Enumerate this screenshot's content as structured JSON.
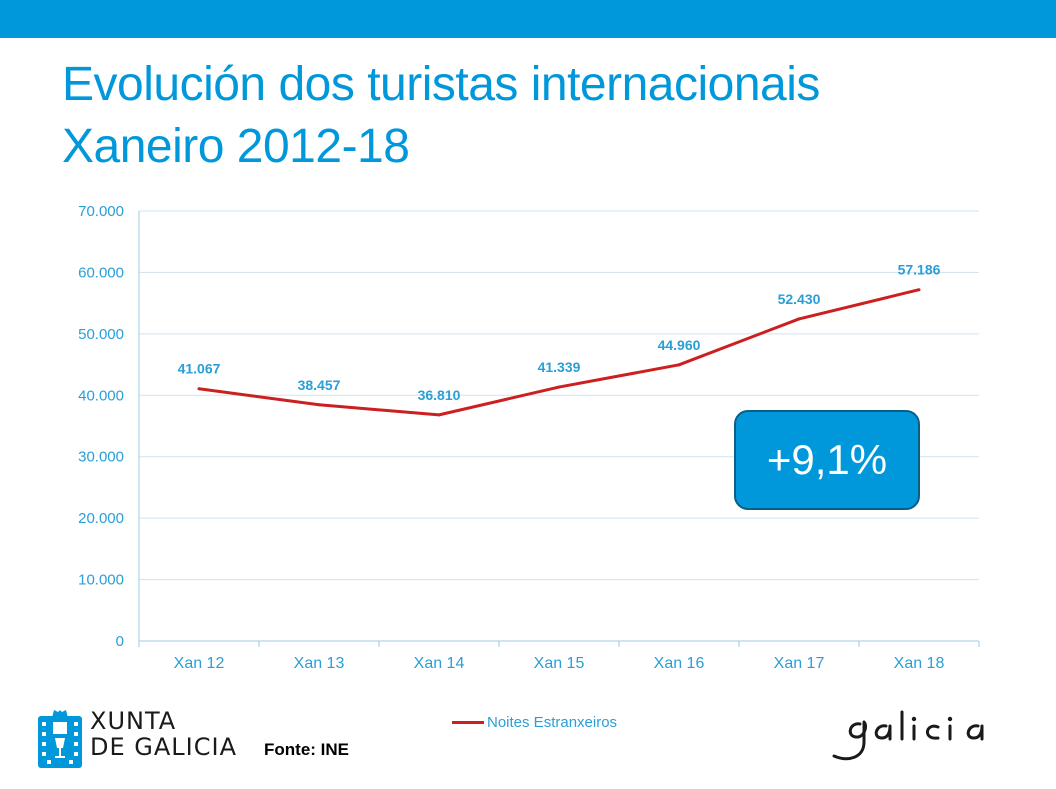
{
  "title": {
    "line1": "Evolución dos turistas internacionais",
    "line2": "Xaneiro 2012-18"
  },
  "badge": "+9,1%",
  "source": "Fonte: INE",
  "logos": {
    "xunta_line1": "XUNTA",
    "xunta_line2": "DE GALICIA",
    "galicia": "galicia"
  },
  "colors": {
    "accent": "#0098db",
    "line": "#cc1f1f",
    "label": "#2a9fd6"
  },
  "chart_data": {
    "type": "line",
    "title": "",
    "xlabel": "",
    "ylabel": "",
    "categories": [
      "Xan 12",
      "Xan 13",
      "Xan 14",
      "Xan 15",
      "Xan 16",
      "Xan 17",
      "Xan 18"
    ],
    "series": [
      {
        "name": "Noites Estranxeiros",
        "values": [
          41067,
          38457,
          36810,
          41339,
          44960,
          52430,
          57186
        ],
        "labels": [
          "41.067",
          "38.457",
          "36.810",
          "41.339",
          "44.960",
          "52.430",
          "57.186"
        ]
      }
    ],
    "ylim": [
      0,
      70000
    ],
    "yticks": [
      0,
      10000,
      20000,
      30000,
      40000,
      50000,
      60000,
      70000
    ],
    "ytick_labels": [
      "0",
      "10.000",
      "20.000",
      "30.000",
      "40.000",
      "50.000",
      "60.000",
      "70.000"
    ],
    "grid": true,
    "legend": "bottom"
  }
}
